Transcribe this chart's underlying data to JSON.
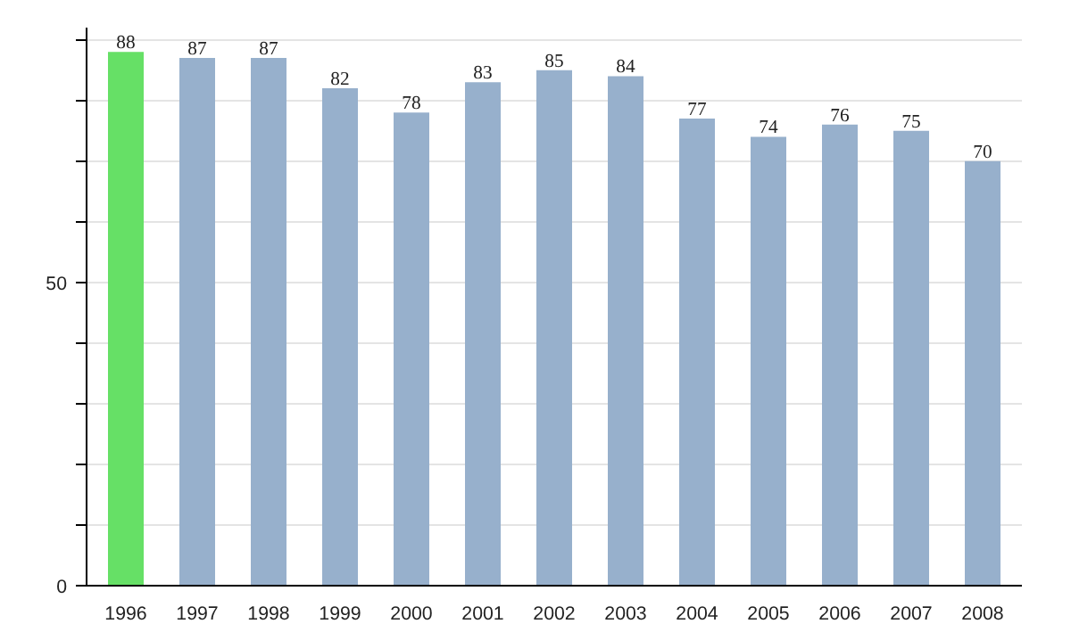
{
  "chart_data": {
    "type": "bar",
    "categories": [
      "1996",
      "1997",
      "1998",
      "1999",
      "2000",
      "2001",
      "2002",
      "2003",
      "2004",
      "2005",
      "2006",
      "2007",
      "2008"
    ],
    "values": [
      88,
      87,
      87,
      82,
      78,
      83,
      85,
      84,
      77,
      74,
      76,
      75,
      70
    ],
    "colors": [
      "#66e066",
      "#97b0cc",
      "#97b0cc",
      "#97b0cc",
      "#97b0cc",
      "#97b0cc",
      "#97b0cc",
      "#97b0cc",
      "#97b0cc",
      "#97b0cc",
      "#97b0cc",
      "#97b0cc",
      "#97b0cc"
    ],
    "ylim": [
      0,
      92
    ],
    "yticks": [
      0,
      {
        "value": 10,
        "label": null
      },
      {
        "value": 20,
        "label": null
      },
      {
        "value": 30,
        "label": null
      },
      {
        "value": 40,
        "label": null
      },
      50,
      {
        "value": 60,
        "label": null
      },
      {
        "value": 70,
        "label": null
      },
      {
        "value": 80,
        "label": null
      },
      {
        "value": 90,
        "label": null
      }
    ],
    "grid": "y",
    "data_labels": true
  }
}
